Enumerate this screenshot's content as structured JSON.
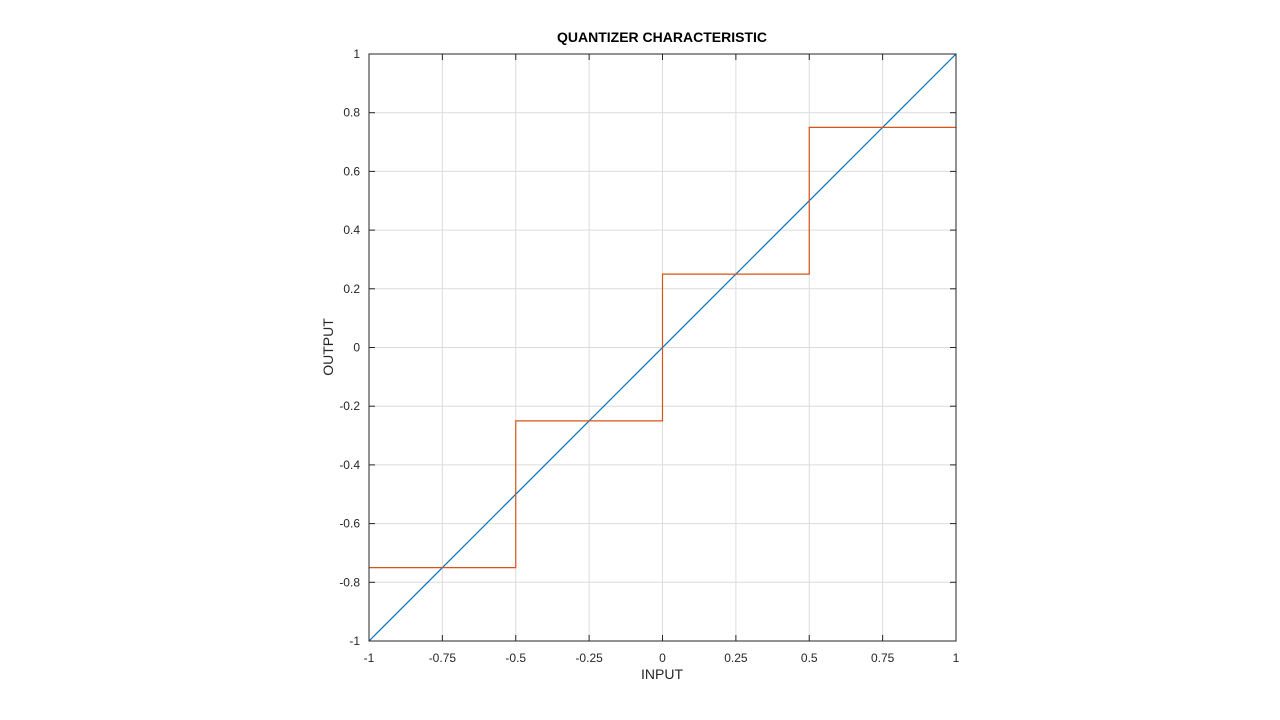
{
  "chart_data": {
    "type": "line",
    "title": "QUANTIZER CHARACTERISTIC",
    "xlabel": "INPUT",
    "ylabel": "OUTPUT",
    "xlim": [
      -1,
      1
    ],
    "ylim": [
      -1,
      1
    ],
    "grid": true,
    "xticks": [
      -1,
      -0.75,
      -0.5,
      -0.25,
      0,
      0.25,
      0.5,
      0.75,
      1
    ],
    "xtick_labels": [
      "-1",
      "-0.75",
      "-0.5",
      "-0.25",
      "0",
      "0.25",
      "0.5",
      "0.75",
      "1"
    ],
    "yticks": [
      -1,
      -0.8,
      -0.6,
      -0.4,
      -0.2,
      0,
      0.2,
      0.4,
      0.6,
      0.8,
      1
    ],
    "ytick_labels": [
      "-1",
      "-0.8",
      "-0.6",
      "-0.4",
      "-0.2",
      "0",
      "0.2",
      "0.4",
      "0.6",
      "0.8",
      "1"
    ],
    "series": [
      {
        "color": "#0072bd",
        "x": [
          -1,
          1
        ],
        "y": [
          -1,
          1
        ]
      },
      {
        "color": "#d95319",
        "x": [
          -1,
          -0.5,
          -0.5,
          0,
          0,
          0.5,
          0.5,
          1
        ],
        "y": [
          -0.75,
          -0.75,
          -0.25,
          -0.25,
          0.25,
          0.25,
          0.75,
          0.75
        ]
      }
    ]
  }
}
